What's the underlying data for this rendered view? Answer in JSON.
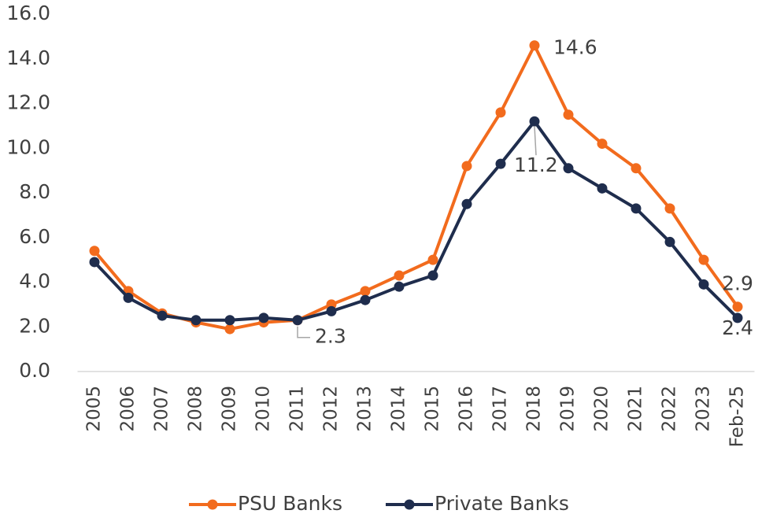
{
  "chart_data": {
    "type": "line",
    "categories": [
      "2005",
      "2006",
      "2007",
      "2008",
      "2009",
      "2010",
      "2011",
      "2012",
      "2013",
      "2014",
      "2015",
      "2016",
      "2017",
      "2018",
      "2019",
      "2020",
      "2021",
      "2022",
      "2023",
      "Feb-25"
    ],
    "series": [
      {
        "name": "PSU Banks",
        "color": "#f26b1d",
        "values": [
          5.4,
          3.6,
          2.6,
          2.2,
          1.9,
          2.2,
          2.3,
          3.0,
          3.6,
          4.3,
          5.0,
          9.2,
          11.6,
          14.6,
          11.5,
          10.2,
          9.1,
          7.3,
          5.0,
          2.9
        ],
        "value_labels": [
          null,
          null,
          null,
          null,
          null,
          null,
          null,
          null,
          null,
          null,
          null,
          null,
          null,
          "14.6",
          null,
          null,
          null,
          null,
          null,
          "2.9"
        ]
      },
      {
        "name": "Private Banks",
        "color": "#1f2d4d",
        "values": [
          4.9,
          3.3,
          2.5,
          2.3,
          2.3,
          2.4,
          2.3,
          2.7,
          3.2,
          3.8,
          4.3,
          7.5,
          9.3,
          11.2,
          9.1,
          8.2,
          7.3,
          5.8,
          3.9,
          2.4
        ],
        "value_labels": [
          null,
          null,
          null,
          null,
          null,
          null,
          "2.3",
          null,
          null,
          null,
          null,
          null,
          null,
          "11.2",
          null,
          null,
          null,
          null,
          null,
          "2.4"
        ]
      }
    ],
    "ylim": [
      0,
      16
    ],
    "yticks": [
      {
        "value": 0,
        "label": "0.0"
      },
      {
        "value": 2,
        "label": "2.0"
      },
      {
        "value": 4,
        "label": "4.0"
      },
      {
        "value": 6,
        "label": "6.0"
      },
      {
        "value": 8,
        "label": "8.0"
      },
      {
        "value": 10,
        "label": "10.0"
      },
      {
        "value": 12,
        "label": "12.0"
      },
      {
        "value": 14,
        "label": "14.0"
      },
      {
        "value": 16,
        "label": "16.0"
      }
    ],
    "grid": false,
    "legend": "bottom"
  }
}
